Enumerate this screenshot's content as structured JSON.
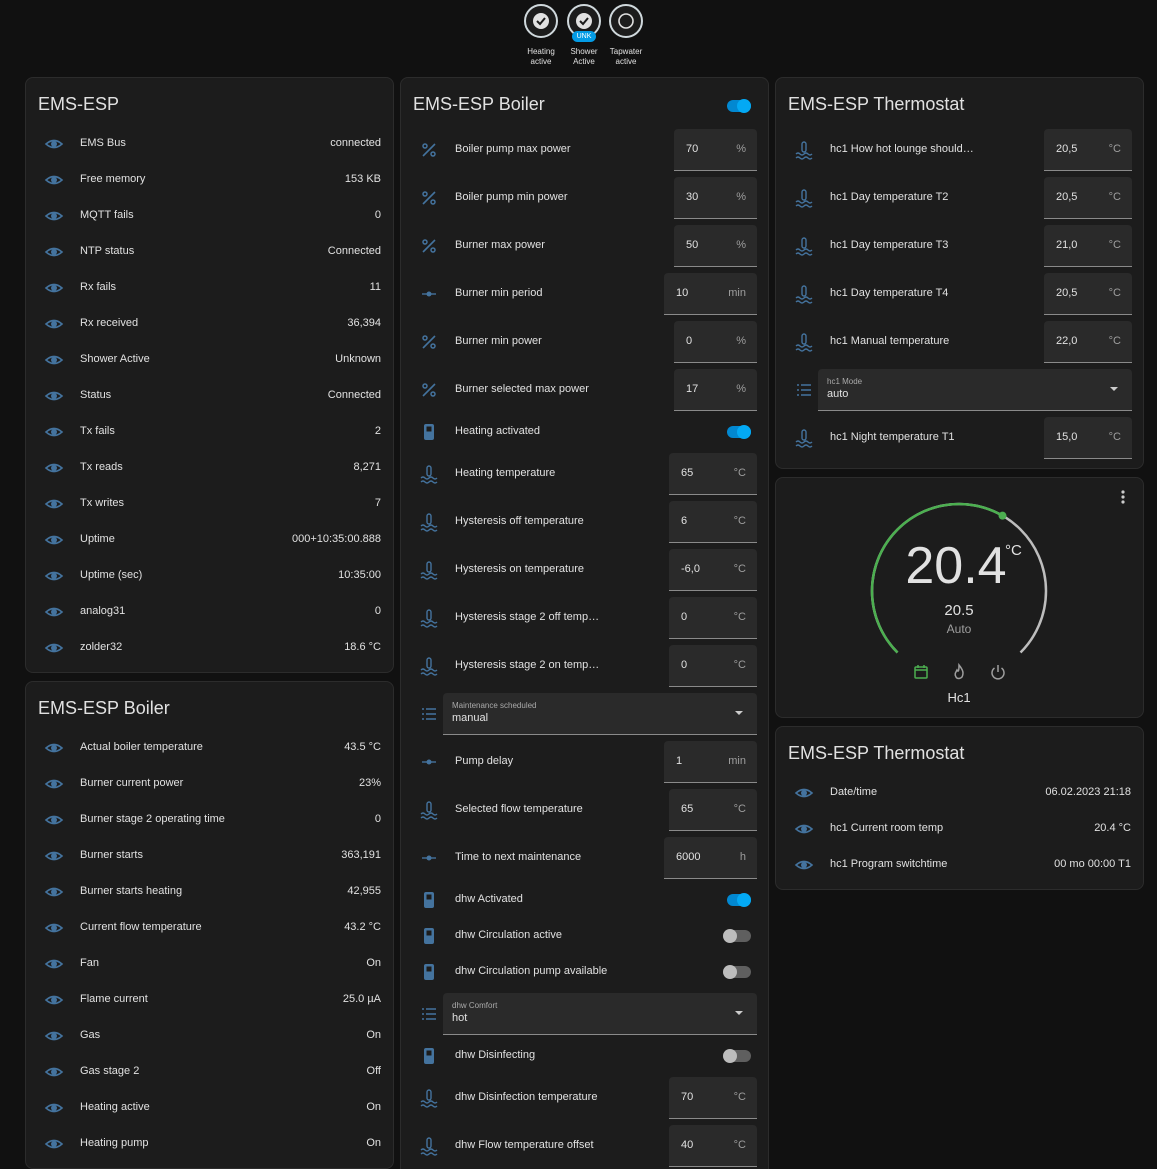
{
  "badges": [
    {
      "label": "Heating active",
      "checked": true
    },
    {
      "label": "Shower Active",
      "checked": true,
      "tag": "UNK"
    },
    {
      "label": "Tapwater active",
      "checked": false
    }
  ],
  "columns": [
    [
      {
        "title": "EMS-ESP",
        "rows": [
          {
            "kind": "sensor",
            "name": "EMS Bus",
            "state": "connected"
          },
          {
            "kind": "sensor",
            "name": "Free memory",
            "state": "153 KB"
          },
          {
            "kind": "sensor",
            "name": "MQTT fails",
            "state": "0"
          },
          {
            "kind": "sensor",
            "name": "NTP status",
            "state": "Connected"
          },
          {
            "kind": "sensor",
            "name": "Rx fails",
            "state": "11"
          },
          {
            "kind": "sensor",
            "name": "Rx received",
            "state": "36,394"
          },
          {
            "kind": "sensor",
            "name": "Shower Active",
            "state": "Unknown"
          },
          {
            "kind": "sensor",
            "name": "Status",
            "state": "Connected"
          },
          {
            "kind": "sensor",
            "name": "Tx fails",
            "state": "2"
          },
          {
            "kind": "sensor",
            "name": "Tx reads",
            "state": "8,271"
          },
          {
            "kind": "sensor",
            "name": "Tx writes",
            "state": "7"
          },
          {
            "kind": "sensor",
            "name": "Uptime",
            "state": "000+10:35:00.888"
          },
          {
            "kind": "sensor",
            "name": "Uptime (sec)",
            "state": "10:35:00"
          },
          {
            "kind": "sensor",
            "name": "analog31",
            "state": "0"
          },
          {
            "kind": "sensor",
            "name": "zolder32",
            "state": "18.6 °C"
          }
        ]
      },
      {
        "title": "EMS-ESP Boiler",
        "rows": [
          {
            "kind": "sensor",
            "name": "Actual boiler temperature",
            "state": "43.5 °C"
          },
          {
            "kind": "sensor",
            "name": "Burner current power",
            "state": "23%"
          },
          {
            "kind": "sensor",
            "name": "Burner stage 2 operating time",
            "state": "0"
          },
          {
            "kind": "sensor",
            "name": "Burner starts",
            "state": "363,191"
          },
          {
            "kind": "sensor",
            "name": "Burner starts heating",
            "state": "42,955"
          },
          {
            "kind": "sensor",
            "name": "Current flow temperature",
            "state": "43.2 °C"
          },
          {
            "kind": "sensor",
            "name": "Fan",
            "state": "On"
          },
          {
            "kind": "sensor",
            "name": "Flame current",
            "state": "25.0 µA"
          },
          {
            "kind": "sensor",
            "name": "Gas",
            "state": "On"
          },
          {
            "kind": "sensor",
            "name": "Gas stage 2",
            "state": "Off"
          },
          {
            "kind": "sensor",
            "name": "Heating active",
            "state": "On"
          },
          {
            "kind": "sensor",
            "name": "Heating pump",
            "state": "On"
          }
        ]
      }
    ],
    [
      {
        "title": "EMS-ESP Boiler",
        "toggle": true,
        "rows": [
          {
            "kind": "number",
            "name": "Boiler pump max power",
            "value": "70",
            "unit": "%"
          },
          {
            "kind": "number",
            "name": "Boiler pump min power",
            "value": "30",
            "unit": "%"
          },
          {
            "kind": "number",
            "name": "Burner max power",
            "value": "50",
            "unit": "%"
          },
          {
            "kind": "number",
            "name": "Burner min period",
            "value": "10",
            "unit": "min"
          },
          {
            "kind": "number",
            "name": "Burner min power",
            "value": "0",
            "unit": "%"
          },
          {
            "kind": "number",
            "name": "Burner selected max power",
            "value": "17",
            "unit": "%"
          },
          {
            "kind": "switch",
            "name": "Heating activated",
            "on": true
          },
          {
            "kind": "number",
            "name": "Heating temperature",
            "value": "65",
            "unit": "°C"
          },
          {
            "kind": "number",
            "name": "Hysteresis off temperature",
            "value": "6",
            "unit": "°C"
          },
          {
            "kind": "number",
            "name": "Hysteresis on temperature",
            "value": "-6,0",
            "unit": "°C"
          },
          {
            "kind": "number",
            "name": "Hysteresis stage 2 off temp…",
            "value": "0",
            "unit": "°C"
          },
          {
            "kind": "number",
            "name": "Hysteresis stage 2 on temp…",
            "value": "0",
            "unit": "°C"
          },
          {
            "kind": "select",
            "name": "Maintenance scheduled",
            "value": "manual"
          },
          {
            "kind": "number",
            "name": "Pump delay",
            "value": "1",
            "unit": "min"
          },
          {
            "kind": "number",
            "name": "Selected flow temperature",
            "value": "65",
            "unit": "°C"
          },
          {
            "kind": "number",
            "name": "Time to next maintenance",
            "value": "6000",
            "unit": "h"
          },
          {
            "kind": "switch",
            "name": "dhw Activated",
            "on": true
          },
          {
            "kind": "switch",
            "name": "dhw Circulation active",
            "on": false
          },
          {
            "kind": "switch",
            "name": "dhw Circulation pump available",
            "on": false
          },
          {
            "kind": "select",
            "name": "dhw Comfort",
            "value": "hot"
          },
          {
            "kind": "switch",
            "name": "dhw Disinfecting",
            "on": false
          },
          {
            "kind": "number",
            "name": "dhw Disinfection temperature",
            "value": "70",
            "unit": "°C"
          },
          {
            "kind": "number",
            "name": "dhw Flow temperature offset",
            "value": "40",
            "unit": "°C"
          }
        ]
      }
    ],
    [
      {
        "title": "EMS-ESP Thermostat",
        "rows": [
          {
            "kind": "number",
            "name": "hc1 How hot lounge should…",
            "value": "20,5",
            "unit": "°C"
          },
          {
            "kind": "number",
            "name": "hc1 Day temperature T2",
            "value": "20,5",
            "unit": "°C"
          },
          {
            "kind": "number",
            "name": "hc1 Day temperature T3",
            "value": "21,0",
            "unit": "°C"
          },
          {
            "kind": "number",
            "name": "hc1 Day temperature T4",
            "value": "20,5",
            "unit": "°C"
          },
          {
            "kind": "number",
            "name": "hc1 Manual temperature",
            "value": "22,0",
            "unit": "°C"
          },
          {
            "kind": "select",
            "name": "hc1 Mode",
            "value": "auto"
          },
          {
            "kind": "number",
            "name": "hc1 Night temperature T1",
            "value": "15,0",
            "unit": "°C"
          }
        ]
      },
      {
        "thermostat": {
          "current": "20.4",
          "unit": "°C",
          "target": "20.5",
          "mode": "Auto",
          "name": "Hc1"
        }
      },
      {
        "title": "EMS-ESP Thermostat",
        "rows": [
          {
            "kind": "sensor",
            "name": "Date/time",
            "state": "06.02.2023 21:18"
          },
          {
            "kind": "sensor",
            "name": "hc1 Current room temp",
            "state": "20.4 °C"
          },
          {
            "kind": "sensor",
            "name": "hc1 Program switchtime",
            "state": "00 mo 00:00 T1"
          }
        ]
      }
    ]
  ]
}
